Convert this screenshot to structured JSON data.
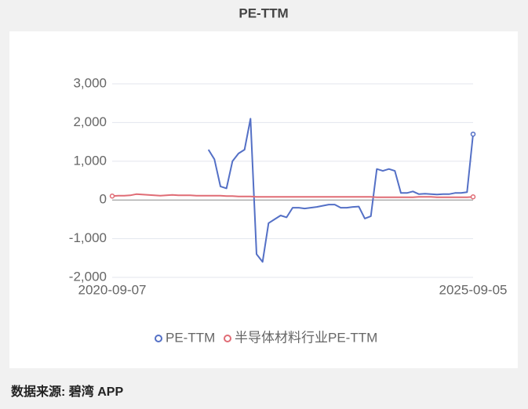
{
  "chart_data": {
    "type": "line",
    "title": "PE-TTM",
    "categories": [
      "2020-09-07",
      null,
      null,
      null,
      null,
      null,
      null,
      null,
      null,
      null,
      null,
      null,
      null,
      null,
      null,
      null,
      null,
      null,
      null,
      null,
      null,
      null,
      null,
      null,
      null,
      null,
      null,
      null,
      null,
      null,
      null,
      null,
      null,
      null,
      null,
      null,
      null,
      null,
      null,
      null,
      null,
      null,
      null,
      null,
      null,
      null,
      null,
      null,
      null,
      null,
      null,
      null,
      null,
      null,
      null,
      null,
      null,
      null,
      null,
      null,
      "2025-09-05"
    ],
    "series": [
      {
        "name": "PE-TTM",
        "color": "#5470c6",
        "values": [
          null,
          null,
          null,
          null,
          null,
          null,
          null,
          null,
          null,
          null,
          null,
          null,
          null,
          null,
          null,
          null,
          1300,
          1050,
          350,
          300,
          1000,
          1200,
          1300,
          2100,
          -1400,
          -1600,
          -600,
          -500,
          -400,
          -450,
          -200,
          -200,
          -220,
          -200,
          -180,
          -150,
          -120,
          -120,
          -200,
          -200,
          -180,
          -170,
          -480,
          -420,
          800,
          750,
          800,
          750,
          180,
          180,
          220,
          150,
          160,
          150,
          140,
          150,
          150,
          180,
          180,
          200,
          1700
        ]
      },
      {
        "name": "半导体材料行业PE-TTM",
        "color": "#e06c75",
        "values": [
          100,
          110,
          110,
          120,
          150,
          140,
          130,
          120,
          110,
          120,
          130,
          120,
          120,
          120,
          110,
          110,
          110,
          110,
          110,
          100,
          100,
          90,
          90,
          90,
          80,
          80,
          80,
          80,
          80,
          80,
          80,
          80,
          80,
          80,
          80,
          80,
          80,
          80,
          80,
          80,
          80,
          80,
          80,
          80,
          70,
          70,
          70,
          70,
          70,
          70,
          70,
          80,
          80,
          80,
          70,
          70,
          70,
          70,
          70,
          70,
          80
        ]
      }
    ],
    "ylim": [
      -2000,
      3000
    ],
    "yticks": [
      {
        "value": -2000,
        "label": "-2,000"
      },
      {
        "value": -1000,
        "label": "-1,000"
      },
      0,
      {
        "value": 1000,
        "label": "1,000"
      },
      {
        "value": 2000,
        "label": "2,000"
      },
      {
        "value": 3000,
        "label": "3,000"
      }
    ],
    "grid": true,
    "legend": "bottom",
    "source": "数据来源: 碧湾 APP"
  }
}
